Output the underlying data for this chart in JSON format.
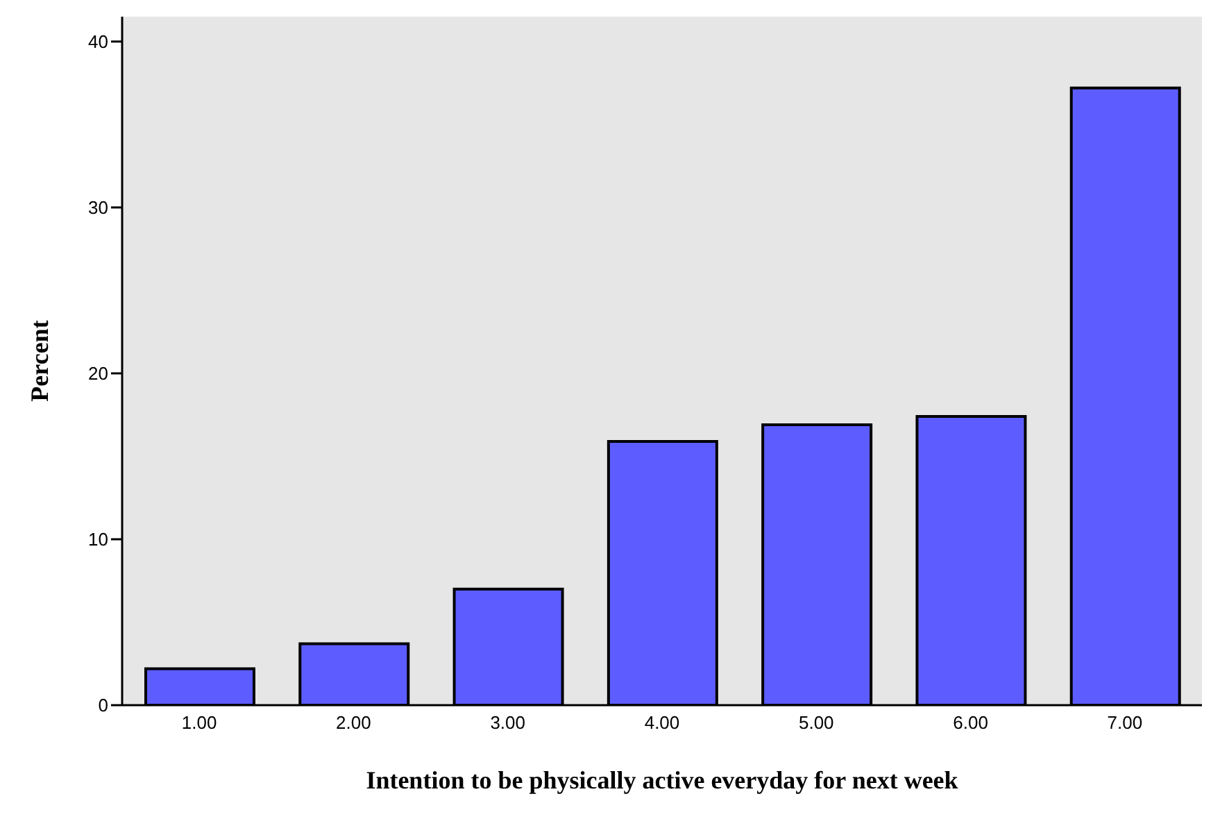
{
  "chart_data": {
    "type": "bar",
    "xlabel": "Intention to be physically active everyday for next week",
    "ylabel": "Percent",
    "categories": [
      "1.00",
      "2.00",
      "3.00",
      "4.00",
      "5.00",
      "6.00",
      "7.00"
    ],
    "values": [
      2.2,
      3.7,
      7.0,
      15.9,
      16.9,
      17.4,
      37.2
    ],
    "color": "#5d5dff",
    "ylim": [
      0,
      41.5
    ],
    "yticks": [
      0,
      10,
      20,
      30,
      40
    ],
    "grid": false,
    "legend": false
  }
}
